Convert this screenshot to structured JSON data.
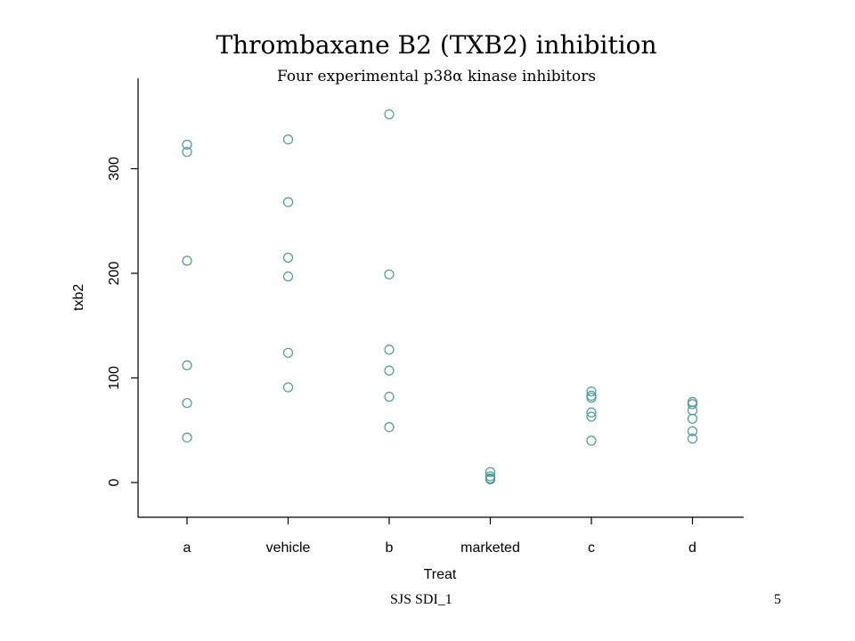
{
  "chart_data": {
    "type": "scatter",
    "title": "Thrombaxane B2 (TXB2) inhibition",
    "subtitle": "Four experimental p38α kinase inhibitors",
    "xlabel": "Treat",
    "ylabel": "txb2",
    "categories": [
      "a",
      "vehicle",
      "b",
      "marketed",
      "c",
      "d"
    ],
    "yticks": [
      0,
      100,
      200,
      300
    ],
    "ylim": [
      -33,
      385
    ],
    "grid": false,
    "point_color": "#4a9a9e",
    "series": [
      {
        "category": "a",
        "values": [
          323,
          316,
          212,
          112,
          76,
          43
        ]
      },
      {
        "category": "vehicle",
        "values": [
          328,
          268,
          215,
          197,
          124,
          91
        ]
      },
      {
        "category": "b",
        "values": [
          352,
          199,
          127,
          107,
          82,
          53
        ]
      },
      {
        "category": "marketed",
        "values": [
          10,
          6,
          4,
          3
        ]
      },
      {
        "category": "c",
        "values": [
          87,
          83,
          81,
          67,
          63,
          40
        ]
      },
      {
        "category": "d",
        "values": [
          77,
          75,
          69,
          61,
          49,
          42
        ]
      }
    ]
  },
  "footer": {
    "left": "SJS  SDI_1",
    "right": "5"
  }
}
